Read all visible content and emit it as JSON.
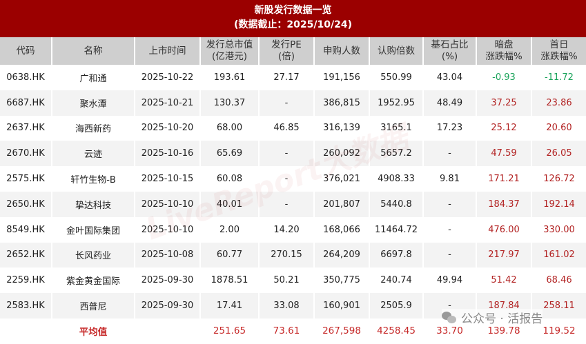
{
  "title": {
    "line1": "新股发行数据一览",
    "line2": "(数据截止：2025/10/24)"
  },
  "headers": [
    [
      "代码",
      ""
    ],
    [
      "名称",
      ""
    ],
    [
      "上市时间",
      ""
    ],
    [
      "发行总市值",
      "(亿港元)"
    ],
    [
      "发行PE",
      "(倍)"
    ],
    [
      "申购人数",
      ""
    ],
    [
      "认购倍数",
      ""
    ],
    [
      "基石占比",
      "(%)"
    ],
    [
      "暗盘",
      "涨跌幅%"
    ],
    [
      "首日",
      "涨跌幅%"
    ]
  ],
  "rows": [
    [
      "0638.HK",
      "广和通",
      "2025-10-22",
      "193.61",
      "27.17",
      "191,156",
      "550.99",
      "43.04",
      "-0.93",
      "-11.72"
    ],
    [
      "6687.HK",
      "聚水潭",
      "2025-10-21",
      "130.37",
      "-",
      "386,815",
      "1952.95",
      "48.49",
      "37.25",
      "23.86"
    ],
    [
      "2637.HK",
      "海西新药",
      "2025-10-20",
      "68.00",
      "46.85",
      "316,139",
      "3165.1",
      "17.23",
      "25.12",
      "20.60"
    ],
    [
      "2670.HK",
      "云迹",
      "2025-10-16",
      "65.69",
      "-",
      "260,092",
      "5657.2",
      "-",
      "47.59",
      "26.05"
    ],
    [
      "2575.HK",
      "轩竹生物-B",
      "2025-10-15",
      "60.08",
      "-",
      "376,021",
      "4908.33",
      "9.81",
      "171.21",
      "126.72"
    ],
    [
      "2650.HK",
      "挚达科技",
      "2025-10-10",
      "40.01",
      "-",
      "201,807",
      "5440.8",
      "-",
      "184.37",
      "192.14"
    ],
    [
      "8549.HK",
      "金叶国际集团",
      "2025-10-10",
      "2.00",
      "14.20",
      "168,066",
      "11464.72",
      "-",
      "476.00",
      "330.00"
    ],
    [
      "2652.HK",
      "长风药业",
      "2025-10-08",
      "60.77",
      "270.15",
      "264,209",
      "6697.8",
      "-",
      "217.97",
      "161.02"
    ],
    [
      "2259.HK",
      "紫金黄金国际",
      "2025-09-30",
      "1878.51",
      "50.21",
      "350,775",
      "240.74",
      "49.94",
      "51.42",
      "68.46"
    ],
    [
      "2583.HK",
      "西普尼",
      "2025-09-30",
      "17.41",
      "33.08",
      "160,901",
      "2505.9",
      "-",
      "187.84",
      "258.11"
    ]
  ],
  "average": {
    "label": "平均值",
    "values": [
      "",
      "",
      "251.65",
      "73.61",
      "267,598",
      "4258.45",
      "33.70",
      "139.78",
      "119.52"
    ]
  },
  "watermark": "LiveReport大数据",
  "footer": {
    "icon": "wechat-icon",
    "text": "公众号 · 活报告"
  },
  "colors": {
    "title_bg": "#9b0000",
    "positive": "#b22222",
    "negative": "#1aa35a"
  }
}
